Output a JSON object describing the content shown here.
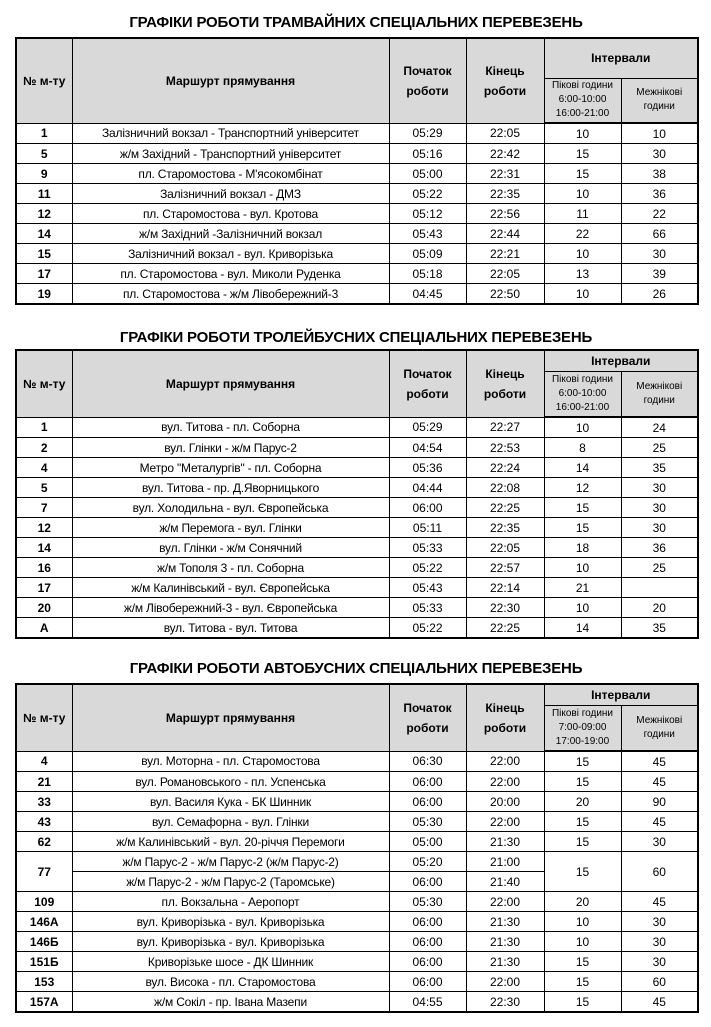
{
  "headers": {
    "num": "№ м-ту",
    "route": "Маршурт прямування",
    "start": "Початок роботи",
    "end": "Кінець роботи",
    "intervals": "Інтервали",
    "offpeak": "Межнікові години"
  },
  "tables": [
    {
      "title": "ГРАФІКИ РОБОТИ ТРАМВАЙНИХ СПЕЦІАЛЬНИХ ПЕРЕВЕЗЕНЬ",
      "peak": [
        "Пікові години",
        "6:00-10:00",
        "16:00-21:00"
      ],
      "rows": [
        {
          "num": "1",
          "route": "Залізничний вокзал - Транспортний університет",
          "start": "05:29",
          "end": "22:05",
          "peak": "10",
          "offpeak": "10"
        },
        {
          "num": "5",
          "route": "ж/м Західний - Транспортний університет",
          "start": "05:16",
          "end": "22:42",
          "peak": "15",
          "offpeak": "30"
        },
        {
          "num": "9",
          "route": "пл. Старомостова - М'ясокомбінат",
          "start": "05:00",
          "end": "22:31",
          "peak": "15",
          "offpeak": "38"
        },
        {
          "num": "11",
          "route": "Залізничний вокзал - ДМЗ",
          "start": "05:22",
          "end": "22:35",
          "peak": "10",
          "offpeak": "36"
        },
        {
          "num": "12",
          "route": "пл. Старомостова - вул. Кротова",
          "start": "05:12",
          "end": "22:56",
          "peak": "11",
          "offpeak": "22"
        },
        {
          "num": "14",
          "route": "ж/м Західний -Залізничний вокзал",
          "start": "05:43",
          "end": "22:44",
          "peak": "22",
          "offpeak": "66"
        },
        {
          "num": "15",
          "route": "Залізничний вокзал - вул. Криворізька",
          "start": "05:09",
          "end": "22:21",
          "peak": "10",
          "offpeak": "30"
        },
        {
          "num": "17",
          "route": "пл. Старомостова - вул. Миколи Руденка",
          "start": "05:18",
          "end": "22:05",
          "peak": "13",
          "offpeak": "39"
        },
        {
          "num": "19",
          "route": "пл. Старомостова - ж/м Лівобережний-3",
          "start": "04:45",
          "end": "22:50",
          "peak": "10",
          "offpeak": "26"
        }
      ]
    },
    {
      "title": "ГРАФІКИ РОБОТИ ТРОЛЕЙБУСНИХ СПЕЦІАЛЬНИХ ПЕРЕВЕЗЕНЬ",
      "peak": [
        "Пікові години",
        "6:00-10:00",
        "16:00-21:00"
      ],
      "rows": [
        {
          "num": "1",
          "route": "вул. Титова - пл. Соборна",
          "start": "05:29",
          "end": "22:27",
          "peak": "10",
          "offpeak": "24"
        },
        {
          "num": "2",
          "route": "вул. Глінки - ж/м Парус-2",
          "start": "04:54",
          "end": "22:53",
          "peak": "8",
          "offpeak": "25"
        },
        {
          "num": "4",
          "route": "Метро \"Металургів\" - пл. Соборна",
          "start": "05:36",
          "end": "22:24",
          "peak": "14",
          "offpeak": "35"
        },
        {
          "num": "5",
          "route": "вул. Титова - пр. Д.Яворницького",
          "start": "04:44",
          "end": "22:08",
          "peak": "12",
          "offpeak": "30"
        },
        {
          "num": "7",
          "route": "вул. Холодильна - вул. Європейська",
          "start": "06:00",
          "end": "22:25",
          "peak": "15",
          "offpeak": "30"
        },
        {
          "num": "12",
          "route": "ж/м Перемога - вул. Глінки",
          "start": "05:11",
          "end": "22:35",
          "peak": "15",
          "offpeak": "30"
        },
        {
          "num": "14",
          "route": "вул. Глінки - ж/м Сонячний",
          "start": "05:33",
          "end": "22:05",
          "peak": "18",
          "offpeak": "36"
        },
        {
          "num": "16",
          "route": "ж/м Тополя 3 - пл. Соборна",
          "start": "05:22",
          "end": "22:57",
          "peak": "10",
          "offpeak": "25"
        },
        {
          "num": "17",
          "route": "ж/м Калинівський - вул. Європейська",
          "start": "05:43",
          "end": "22:14",
          "peak": "21",
          "offpeak": ""
        },
        {
          "num": "20",
          "route": "ж/м Лівобережний-3 - вул. Європейська",
          "start": "05:33",
          "end": "22:30",
          "peak": "10",
          "offpeak": "20"
        },
        {
          "num": "А",
          "route": "вул. Титова - вул. Титова",
          "start": "05:22",
          "end": "22:25",
          "peak": "14",
          "offpeak": "35"
        }
      ]
    },
    {
      "title": "ГРАФІКИ РОБОТИ АВТОБУСНИХ СПЕЦІАЛЬНИХ ПЕРЕВЕЗЕНЬ",
      "peak": [
        "Пікові години",
        "7:00-09:00",
        "17:00-19:00"
      ],
      "rows": [
        {
          "num": "4",
          "route": "вул. Моторна - пл. Старомостова",
          "start": "06:30",
          "end": "22:00",
          "peak": "15",
          "offpeak": "45"
        },
        {
          "num": "21",
          "route": "вул. Романовського - пл. Успенська",
          "start": "06:00",
          "end": "22:00",
          "peak": "15",
          "offpeak": "45"
        },
        {
          "num": "33",
          "route": "вул. Василя Кука - БК Шинник",
          "start": "06:00",
          "end": "20:00",
          "peak": "20",
          "offpeak": "90"
        },
        {
          "num": "43",
          "route": "вул. Семафорна - вул. Глінки",
          "start": "05:30",
          "end": "22:00",
          "peak": "15",
          "offpeak": "45"
        },
        {
          "num": "62",
          "route": "ж/м Калинівський - вул. 20-річчя Перемоги",
          "start": "05:00",
          "end": "21:30",
          "peak": "15",
          "offpeak": "30"
        },
        {
          "num": "77",
          "peak": "15",
          "offpeak": "60",
          "variants": [
            {
              "route": "ж/м Парус-2 - ж/м Парус-2 (ж/м Парус-2)",
              "start": "05:20",
              "end": "21:00"
            },
            {
              "route": "ж/м Парус-2 - ж/м Парус-2 (Таромське)",
              "start": "06:00",
              "end": "21:40"
            }
          ]
        },
        {
          "num": "109",
          "route": "пл. Вокзальна - Аеропорт",
          "start": "05:30",
          "end": "22:00",
          "peak": "20",
          "offpeak": "45"
        },
        {
          "num": "146А",
          "route": "вул. Криворізька - вул. Криворізька",
          "start": "06:00",
          "end": "21:30",
          "peak": "10",
          "offpeak": "30"
        },
        {
          "num": "146Б",
          "route": "вул. Криворізька - вул. Криворізька",
          "start": "06:00",
          "end": "21:30",
          "peak": "10",
          "offpeak": "30"
        },
        {
          "num": "151Б",
          "route": "Криворізьке шосе - ДК Шинник",
          "start": "06:00",
          "end": "21:30",
          "peak": "15",
          "offpeak": "30"
        },
        {
          "num": "153",
          "route": "вул. Висока - пл. Старомостова",
          "start": "06:00",
          "end": "22:00",
          "peak": "15",
          "offpeak": "60"
        },
        {
          "num": "157А",
          "route": "ж/м Сокіл - пр. Івана Мазепи",
          "start": "04:55",
          "end": "22:30",
          "peak": "15",
          "offpeak": "45"
        }
      ]
    }
  ]
}
